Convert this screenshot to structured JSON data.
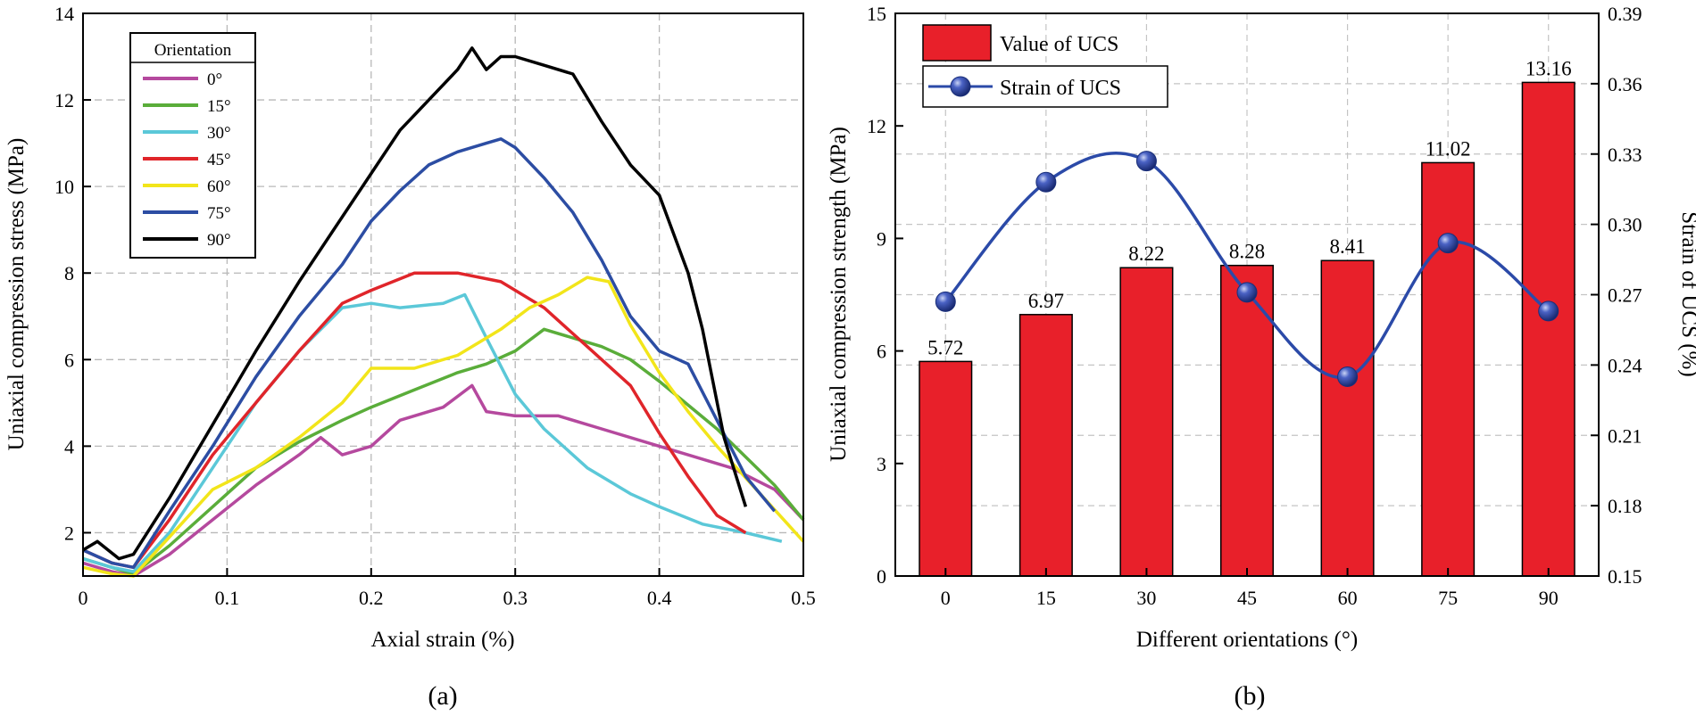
{
  "chart_data": [
    {
      "type": "line",
      "panel_label": "(a)",
      "xlabel": "Axial strain (%)",
      "ylabel": "Uniaxial compression stress (MPa)",
      "xlim": [
        0,
        0.5
      ],
      "ylim": [
        1,
        14
      ],
      "xticks": [
        0,
        0.1,
        0.2,
        0.3,
        0.4,
        0.5
      ],
      "xtick_labels": [
        "0",
        "0.1",
        "0.2",
        "0.3",
        "0.4",
        "0.5"
      ],
      "yticks": [
        2,
        4,
        6,
        8,
        10,
        12,
        14
      ],
      "ytick_labels": [
        "2",
        "4",
        "6",
        "8",
        "10",
        "12",
        "14"
      ],
      "grid": true,
      "legend_title": "Orientation",
      "legend_position": "top-left",
      "series": [
        {
          "name": "0°",
          "color": "#b5499e",
          "x": [
            0.0,
            0.02,
            0.035,
            0.06,
            0.09,
            0.12,
            0.15,
            0.165,
            0.18,
            0.2,
            0.22,
            0.25,
            0.27,
            0.28,
            0.3,
            0.33,
            0.36,
            0.4,
            0.45,
            0.48,
            0.5
          ],
          "y": [
            1.3,
            1.1,
            1.0,
            1.5,
            2.3,
            3.1,
            3.8,
            4.2,
            3.8,
            4.0,
            4.6,
            4.9,
            5.4,
            4.8,
            4.7,
            4.7,
            4.4,
            4.0,
            3.5,
            3.0,
            2.3
          ]
        },
        {
          "name": "15°",
          "color": "#5aad3a",
          "x": [
            0.0,
            0.02,
            0.035,
            0.06,
            0.09,
            0.12,
            0.15,
            0.18,
            0.2,
            0.23,
            0.26,
            0.28,
            0.3,
            0.32,
            0.34,
            0.36,
            0.38,
            0.4,
            0.44,
            0.48,
            0.5
          ],
          "y": [
            1.4,
            1.2,
            1.05,
            1.7,
            2.6,
            3.5,
            4.1,
            4.6,
            4.9,
            5.3,
            5.7,
            5.9,
            6.2,
            6.7,
            6.5,
            6.3,
            6.0,
            5.5,
            4.4,
            3.1,
            2.3
          ]
        },
        {
          "name": "30°",
          "color": "#5bc8d8",
          "x": [
            0.0,
            0.02,
            0.035,
            0.06,
            0.09,
            0.12,
            0.15,
            0.18,
            0.2,
            0.22,
            0.25,
            0.265,
            0.28,
            0.3,
            0.32,
            0.35,
            0.38,
            0.4,
            0.43,
            0.46,
            0.485
          ],
          "y": [
            1.4,
            1.2,
            1.1,
            2.0,
            3.5,
            5.0,
            6.2,
            7.2,
            7.3,
            7.2,
            7.3,
            7.5,
            6.5,
            5.2,
            4.4,
            3.5,
            2.9,
            2.6,
            2.2,
            2.0,
            1.8
          ]
        },
        {
          "name": "45°",
          "color": "#e0252a",
          "x": [
            0.0,
            0.02,
            0.035,
            0.06,
            0.09,
            0.12,
            0.15,
            0.18,
            0.2,
            0.23,
            0.26,
            0.29,
            0.32,
            0.35,
            0.38,
            0.4,
            0.42,
            0.44,
            0.46
          ],
          "y": [
            1.6,
            1.3,
            1.2,
            2.3,
            3.8,
            5.0,
            6.2,
            7.3,
            7.6,
            8.0,
            8.0,
            7.8,
            7.2,
            6.3,
            5.4,
            4.3,
            3.3,
            2.4,
            2.0
          ]
        },
        {
          "name": "60°",
          "color": "#f2e51a",
          "x": [
            0.0,
            0.02,
            0.035,
            0.06,
            0.09,
            0.12,
            0.15,
            0.18,
            0.2,
            0.23,
            0.26,
            0.29,
            0.31,
            0.33,
            0.35,
            0.365,
            0.38,
            0.4,
            0.42,
            0.44,
            0.47,
            0.5
          ],
          "y": [
            1.2,
            1.05,
            1.0,
            1.9,
            3.0,
            3.5,
            4.2,
            5.0,
            5.8,
            5.8,
            6.1,
            6.7,
            7.2,
            7.5,
            7.9,
            7.8,
            6.8,
            5.7,
            4.8,
            4.0,
            2.9,
            1.8
          ]
        },
        {
          "name": "75°",
          "color": "#2c4da3",
          "x": [
            0.0,
            0.02,
            0.035,
            0.06,
            0.09,
            0.12,
            0.15,
            0.18,
            0.2,
            0.22,
            0.24,
            0.26,
            0.28,
            0.29,
            0.3,
            0.32,
            0.34,
            0.36,
            0.38,
            0.4,
            0.42,
            0.44,
            0.46,
            0.48
          ],
          "y": [
            1.6,
            1.3,
            1.2,
            2.5,
            4.0,
            5.6,
            7.0,
            8.2,
            9.2,
            9.9,
            10.5,
            10.8,
            11.0,
            11.1,
            10.9,
            10.2,
            9.4,
            8.3,
            7.0,
            6.2,
            5.9,
            4.6,
            3.3,
            2.5
          ]
        },
        {
          "name": "90°",
          "color": "#000000",
          "x": [
            0.0,
            0.01,
            0.025,
            0.035,
            0.06,
            0.09,
            0.12,
            0.15,
            0.18,
            0.2,
            0.22,
            0.24,
            0.26,
            0.27,
            0.28,
            0.29,
            0.3,
            0.32,
            0.34,
            0.36,
            0.38,
            0.4,
            0.42,
            0.43,
            0.445,
            0.46
          ],
          "y": [
            1.6,
            1.8,
            1.4,
            1.5,
            2.8,
            4.5,
            6.2,
            7.8,
            9.3,
            10.3,
            11.3,
            12.0,
            12.7,
            13.2,
            12.7,
            13.0,
            13.0,
            12.8,
            12.6,
            11.5,
            10.5,
            9.8,
            8.0,
            6.7,
            4.2,
            2.6
          ]
        }
      ]
    },
    {
      "type": "bar",
      "panel_label": "(b)",
      "xlabel": "Different orientations (°)",
      "ylabel": "Uniaxial compression strength (MPa)",
      "y2label": "Strain of UCS (%)",
      "categories": [
        "0",
        "15",
        "30",
        "45",
        "60",
        "75",
        "90"
      ],
      "ylim": [
        0,
        15
      ],
      "yticks": [
        0,
        3,
        6,
        9,
        12,
        15
      ],
      "ytick_labels": [
        "0",
        "3",
        "6",
        "9",
        "12",
        "15"
      ],
      "y2lim": [
        0.15,
        0.39
      ],
      "y2ticks": [
        0.15,
        0.18,
        0.21,
        0.24,
        0.27,
        0.3,
        0.33,
        0.36,
        0.39
      ],
      "y2tick_labels": [
        "0.15",
        "0.18",
        "0.21",
        "0.24",
        "0.27",
        "0.30",
        "0.33",
        "0.36",
        "0.39"
      ],
      "grid": true,
      "legend_position": "top-left",
      "series": [
        {
          "name": "Value of UCS",
          "kind": "bar",
          "axis": "left",
          "color": "#e8202a",
          "values": [
            5.72,
            6.97,
            8.22,
            8.28,
            8.41,
            11.02,
            13.16
          ],
          "labels": [
            "5.72",
            "6.97",
            "8.22",
            "8.28",
            "8.41",
            "11.02",
            "13.16"
          ]
        },
        {
          "name": "Strain of UCS",
          "kind": "line",
          "axis": "right",
          "color": "#2b4aa8",
          "values": [
            0.267,
            0.318,
            0.327,
            0.271,
            0.235,
            0.292,
            0.263
          ]
        }
      ]
    }
  ]
}
